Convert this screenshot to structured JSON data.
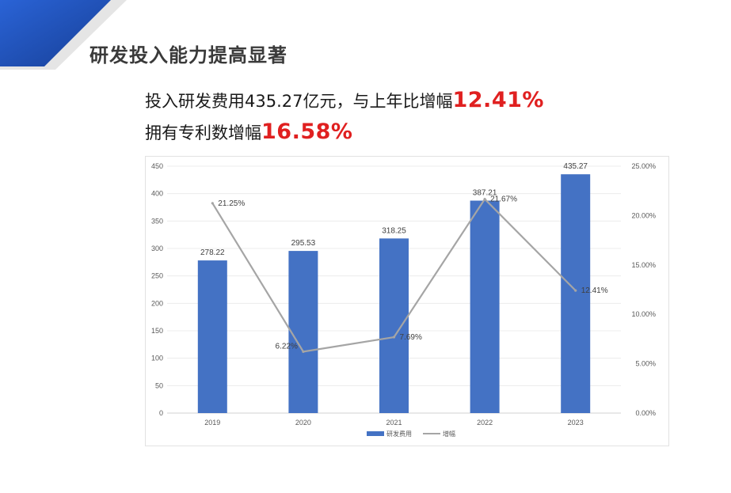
{
  "slide": {
    "title": "研发投入能力提高显著",
    "line1_text": "投入研发费用435.27亿元，与上年比增幅",
    "line1_highlight": "12.41%",
    "line2_text": "拥有专利数增幅",
    "line2_highlight": "16.58%",
    "accent_color": "#e02020",
    "banner_color": "#1f4fb5"
  },
  "chart_data": {
    "type": "bar+line",
    "title": "",
    "categories": [
      "2019",
      "2020",
      "2021",
      "2022",
      "2023"
    ],
    "series": [
      {
        "name": "研发费用",
        "type": "bar",
        "axis": "left",
        "color": "#4472c4",
        "values": [
          278.22,
          295.53,
          318.25,
          387.21,
          435.27
        ],
        "labels": [
          "278.22",
          "295.53",
          "318.25",
          "387.21",
          "435.27"
        ]
      },
      {
        "name": "增幅",
        "type": "line",
        "axis": "right",
        "color": "#a5a5a5",
        "values": [
          21.25,
          6.22,
          7.69,
          21.67,
          12.41
        ],
        "labels": [
          "21.25%",
          "6.22%",
          "7.69%",
          "21.67%",
          "12.41%"
        ]
      }
    ],
    "y_left": {
      "min": 0,
      "max": 450,
      "ticks": [
        "0",
        "50",
        "100",
        "150",
        "200",
        "250",
        "300",
        "350",
        "400",
        "450"
      ]
    },
    "y_right": {
      "min": 0,
      "max": 25,
      "ticks": [
        "0.00%",
        "5.00%",
        "10.00%",
        "15.00%",
        "20.00%",
        "25.00%"
      ]
    },
    "grid": true,
    "legend_position": "bottom"
  }
}
